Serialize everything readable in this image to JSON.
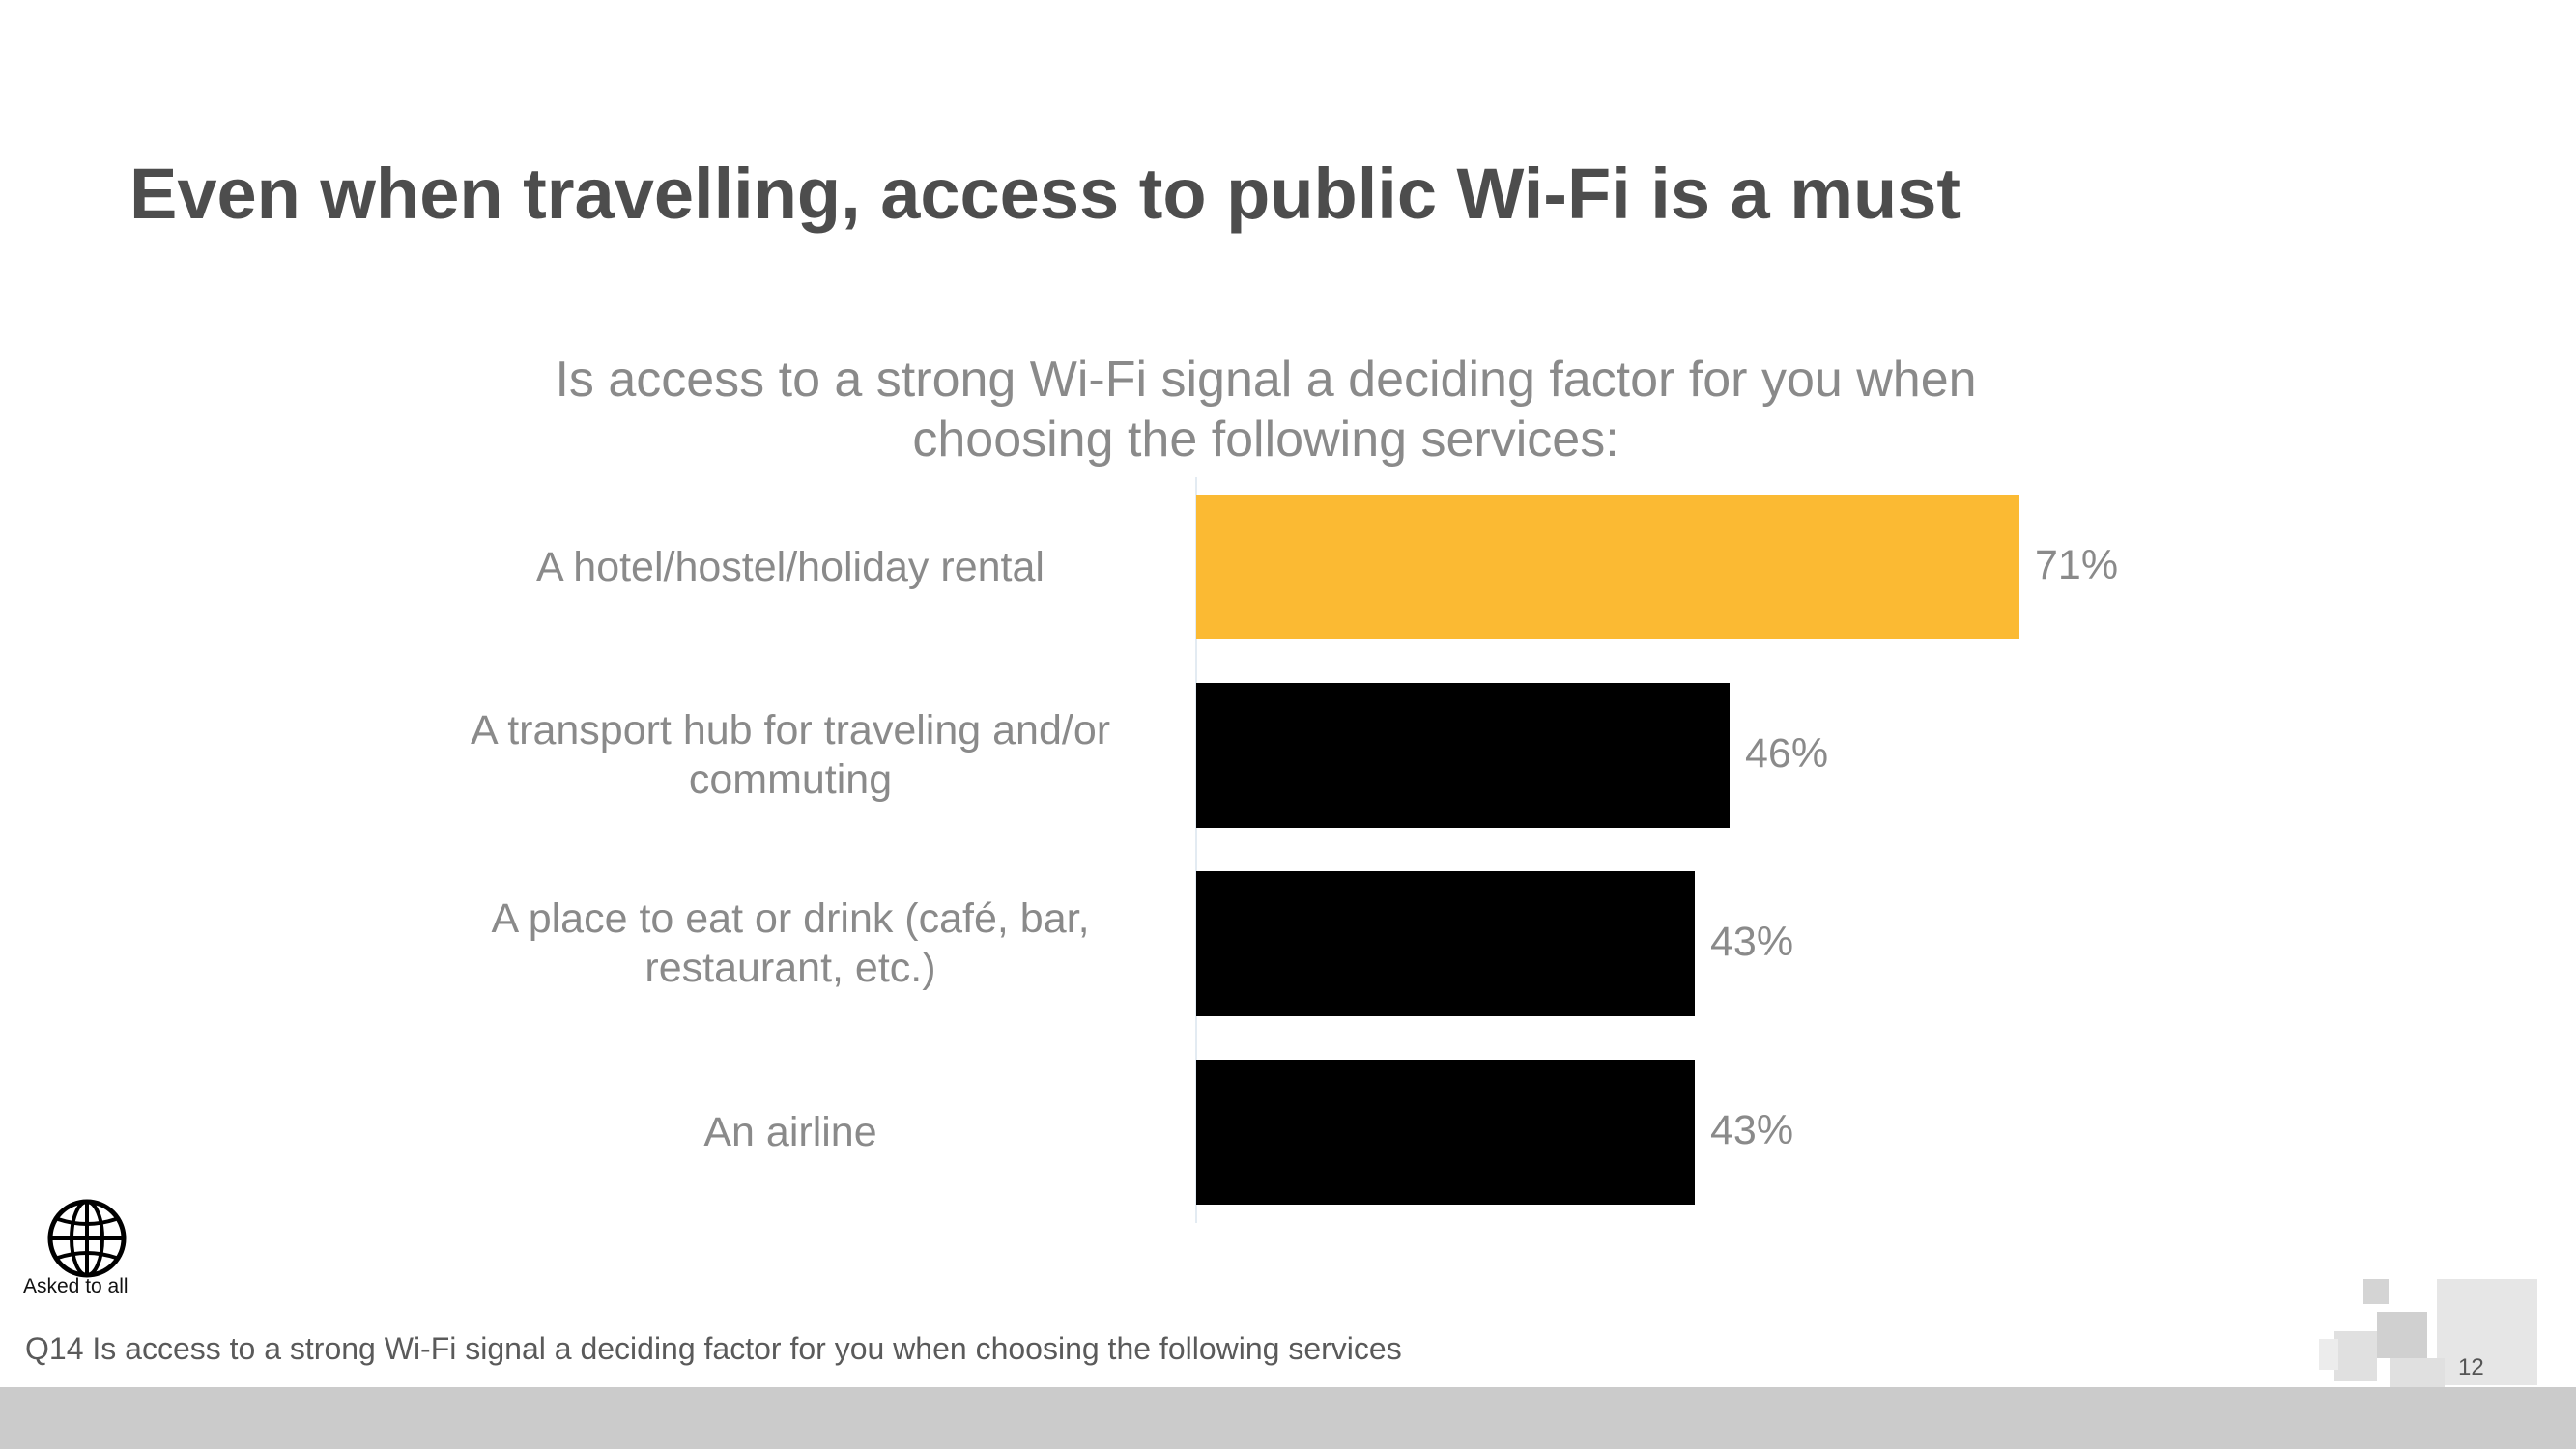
{
  "slide": {
    "title": "Even when travelling, access to public Wi-Fi is a must",
    "page_number": "12",
    "asked_label": "Asked to all",
    "question_note": "Q14 Is access to a strong Wi-Fi signal a deciding factor for you when choosing the following services",
    "icon": "globe-icon"
  },
  "chart_data": {
    "type": "bar",
    "orientation": "horizontal",
    "title": "Is access to a strong Wi-Fi signal a deciding factor for you when choosing the following services:",
    "categories": [
      "A hotel/hostel/holiday rental",
      "A transport hub for traveling and/or commuting",
      "A place to eat or drink (café, bar, restaurant, etc.)",
      "An airline"
    ],
    "values": [
      71,
      46,
      43,
      43
    ],
    "value_labels": [
      "71%",
      "46%",
      "43%",
      "43%"
    ],
    "colors": [
      "#fbba33",
      "#000000",
      "#000000",
      "#000000"
    ],
    "xlim": [
      0,
      100
    ],
    "grid": false,
    "legend": "none"
  }
}
